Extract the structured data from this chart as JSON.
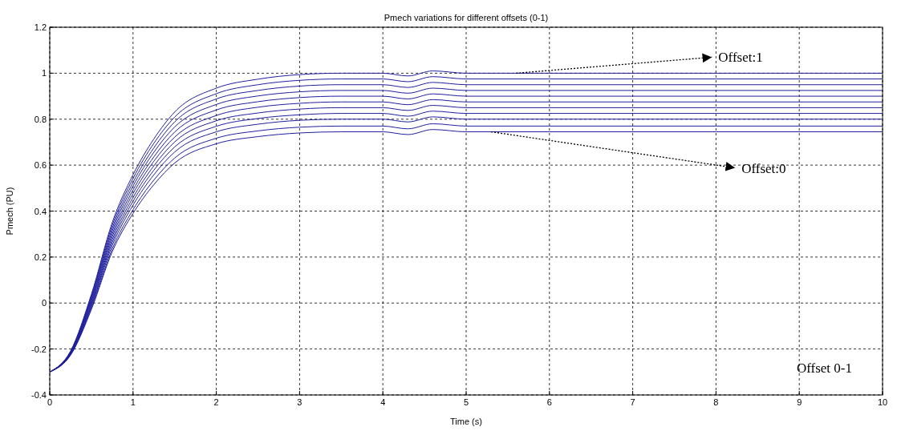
{
  "chart_data": {
    "type": "line",
    "title": "Pmech variations for different offsets (0-1)",
    "xlabel": "Time (s)",
    "ylabel": "Pmech (PU)",
    "x": [
      0,
      0.25,
      0.5,
      0.75,
      1,
      1.25,
      1.5,
      2,
      2.5,
      3,
      3.5,
      4,
      4.3,
      4.6,
      5,
      6,
      8,
      10
    ],
    "xlim": [
      0,
      10
    ],
    "xticks": [
      0,
      1,
      2,
      3,
      4,
      5,
      6,
      7,
      8,
      9,
      10
    ],
    "ylim": [
      -0.4,
      1.2
    ],
    "yticks": [
      -0.4,
      -0.2,
      0,
      0.2,
      0.4,
      0.6,
      0.8,
      1,
      1.2
    ],
    "grid": true,
    "marker": "none",
    "line_style": "solid",
    "series": [
      {
        "color": "#1f1f9e",
        "values": [
          -0.3,
          -0.209,
          0.038,
          0.35,
          0.558,
          0.714,
          0.831,
          0.935,
          0.974,
          0.994,
          1,
          1,
          0.988,
          1.01,
          1,
          1,
          1,
          1
        ]
      },
      {
        "color": "#1f1f9e",
        "values": [
          -0.3,
          -0.211,
          0.032,
          0.338,
          0.542,
          0.695,
          0.809,
          0.911,
          0.95,
          0.969,
          0.975,
          0.975,
          0.963,
          0.985,
          0.975,
          0.975,
          0.975,
          0.975
        ]
      },
      {
        "color": "#1f1f9e",
        "values": [
          -0.3,
          -0.213,
          0.025,
          0.325,
          0.525,
          0.675,
          0.788,
          0.888,
          0.925,
          0.944,
          0.95,
          0.95,
          0.938,
          0.96,
          0.95,
          0.95,
          0.95,
          0.95
        ]
      },
      {
        "color": "#1f1f9e",
        "values": [
          -0.3,
          -0.214,
          0.019,
          0.313,
          0.509,
          0.656,
          0.766,
          0.864,
          0.901,
          0.919,
          0.925,
          0.925,
          0.913,
          0.935,
          0.925,
          0.925,
          0.925,
          0.925
        ]
      },
      {
        "color": "#1f1f9e",
        "values": [
          -0.3,
          -0.216,
          0.012,
          0.3,
          0.492,
          0.636,
          0.744,
          0.84,
          0.876,
          0.894,
          0.9,
          0.9,
          0.888,
          0.91,
          0.9,
          0.9,
          0.9,
          0.9
        ]
      },
      {
        "color": "#1f1f9e",
        "values": [
          -0.3,
          -0.218,
          0.006,
          0.288,
          0.476,
          0.617,
          0.722,
          0.816,
          0.852,
          0.869,
          0.875,
          0.875,
          0.863,
          0.885,
          0.875,
          0.875,
          0.875,
          0.875
        ]
      },
      {
        "color": "#1f1f9e",
        "values": [
          -0.3,
          -0.22,
          -0.001,
          0.275,
          0.459,
          0.597,
          0.701,
          0.793,
          0.827,
          0.844,
          0.85,
          0.85,
          0.838,
          0.86,
          0.85,
          0.85,
          0.85,
          0.85
        ]
      },
      {
        "color": "#1f1f9e",
        "values": [
          -0.3,
          -0.221,
          -0.008,
          0.263,
          0.443,
          0.578,
          0.679,
          0.769,
          0.803,
          0.819,
          0.825,
          0.825,
          0.813,
          0.835,
          0.825,
          0.825,
          0.825,
          0.825
        ]
      },
      {
        "color": "#1f1f9e",
        "values": [
          -0.3,
          -0.223,
          -0.014,
          0.25,
          0.426,
          0.558,
          0.657,
          0.745,
          0.778,
          0.795,
          0.8,
          0.8,
          0.788,
          0.81,
          0.8,
          0.8,
          0.8,
          0.8
        ]
      },
      {
        "color": "#1f1f9e",
        "values": [
          -0.3,
          -0.225,
          -0.022,
          0.235,
          0.406,
          0.535,
          0.631,
          0.717,
          0.749,
          0.765,
          0.77,
          0.77,
          0.758,
          0.78,
          0.77,
          0.77,
          0.77,
          0.77
        ]
      },
      {
        "color": "#1f1f9e",
        "values": [
          -0.3,
          -0.227,
          -0.028,
          0.223,
          0.39,
          0.515,
          0.609,
          0.693,
          0.724,
          0.74,
          0.745,
          0.745,
          0.733,
          0.755,
          0.745,
          0.745,
          0.745,
          0.745
        ]
      }
    ],
    "annotations": [
      {
        "text": "Offset:1",
        "x": 5.6,
        "y": 1
      },
      {
        "text": "Offset:0",
        "x": 5.3,
        "y": 0.745
      },
      "Offset 0-1"
    ]
  }
}
